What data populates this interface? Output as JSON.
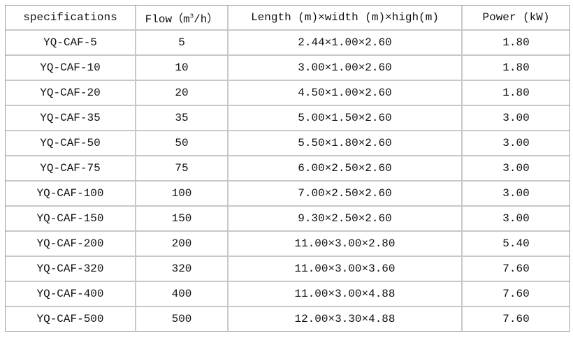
{
  "headers": {
    "spec": "specifications",
    "flow_prefix": "Flow（m",
    "flow_sup": "3",
    "flow_suffix": "/h）",
    "dims": "Length (m)×width (m)×high(m)",
    "power": "Power (kW)"
  },
  "rows": [
    {
      "spec": "YQ-CAF-5",
      "flow": "5",
      "dims": "2.44×1.00×2.60",
      "power": "1.80"
    },
    {
      "spec": "YQ-CAF-10",
      "flow": "10",
      "dims": "3.00×1.00×2.60",
      "power": "1.80"
    },
    {
      "spec": "YQ-CAF-20",
      "flow": "20",
      "dims": "4.50×1.00×2.60",
      "power": "1.80"
    },
    {
      "spec": "YQ-CAF-35",
      "flow": "35",
      "dims": "5.00×1.50×2.60",
      "power": "3.00"
    },
    {
      "spec": "YQ-CAF-50",
      "flow": "50",
      "dims": "5.50×1.80×2.60",
      "power": "3.00"
    },
    {
      "spec": "YQ-CAF-75",
      "flow": "75",
      "dims": "6.00×2.50×2.60",
      "power": "3.00"
    },
    {
      "spec": "YQ-CAF-100",
      "flow": "100",
      "dims": "7.00×2.50×2.60",
      "power": "3.00"
    },
    {
      "spec": "YQ-CAF-150",
      "flow": "150",
      "dims": "9.30×2.50×2.60",
      "power": "3.00"
    },
    {
      "spec": "YQ-CAF-200",
      "flow": "200",
      "dims": "11.00×3.00×2.80",
      "power": "5.40"
    },
    {
      "spec": "YQ-CAF-320",
      "flow": "320",
      "dims": "11.00×3.00×3.60",
      "power": "7.60"
    },
    {
      "spec": "YQ-CAF-400",
      "flow": "400",
      "dims": "11.00×3.00×4.88",
      "power": "7.60"
    },
    {
      "spec": "YQ-CAF-500",
      "flow": "500",
      "dims": "12.00×3.30×4.88",
      "power": "7.60"
    }
  ]
}
